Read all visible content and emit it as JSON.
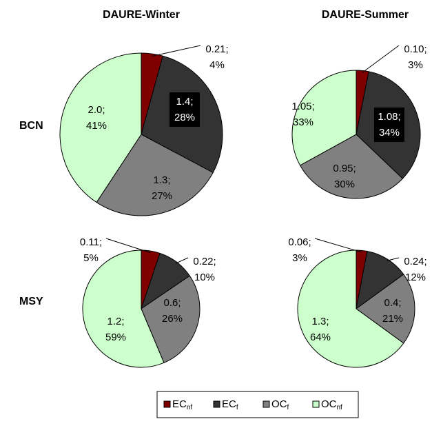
{
  "columns": [
    "DAURE-Winter",
    "DAURE-Summer"
  ],
  "rows": [
    "BCN",
    "MSY"
  ],
  "legend": [
    {
      "text": "EC",
      "subscript": "nf",
      "color": "#800000"
    },
    {
      "text": "EC",
      "subscript": "f",
      "color": "#333333"
    },
    {
      "text": "OC",
      "subscript": "f",
      "color": "#808080"
    },
    {
      "text": "OC",
      "subscript": "nf",
      "color": "#ccffcc"
    }
  ],
  "chart_data": [
    {
      "type": "pie",
      "values": [
        0.21,
        1.4,
        1.3,
        2.0
      ],
      "value_labels": [
        "0.21;",
        "1.4;",
        "1.3;",
        "2.0;"
      ],
      "percents": [
        4,
        28,
        27,
        41
      ],
      "percent_labels": [
        "4%",
        "28%",
        "27%",
        "41%"
      ]
    },
    {
      "type": "pie",
      "values": [
        0.1,
        1.08,
        0.95,
        1.05
      ],
      "value_labels": [
        "0.10;",
        "1.08;",
        "0.95;",
        "1.05;"
      ],
      "percents": [
        3,
        34,
        30,
        33
      ],
      "percent_labels": [
        "3%",
        "34%",
        "30%",
        "33%"
      ]
    },
    {
      "type": "pie",
      "values": [
        0.11,
        0.22,
        0.6,
        1.2
      ],
      "value_labels": [
        "0.11;",
        "0.22;",
        "0.6;",
        "1.2;"
      ],
      "percents": [
        5,
        10,
        26,
        59
      ],
      "percent_labels": [
        "5%",
        "10%",
        "26%",
        "59%"
      ]
    },
    {
      "type": "pie",
      "values": [
        0.06,
        0.24,
        0.4,
        1.3
      ],
      "value_labels": [
        "0.06;",
        "0.24;",
        "0.4;",
        "1.3;"
      ],
      "percents": [
        3,
        12,
        21,
        64
      ],
      "percent_labels": [
        "3%",
        "12%",
        "21%",
        "64%"
      ]
    }
  ]
}
